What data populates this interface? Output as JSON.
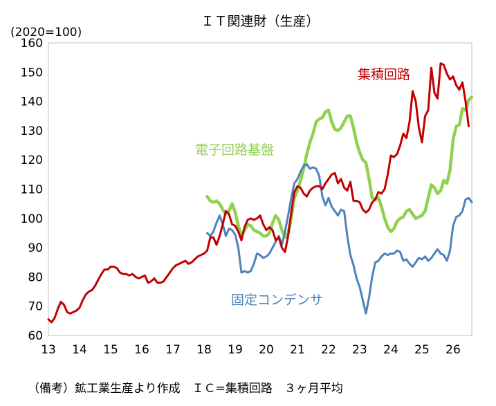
{
  "caption": "（備考）鉱工業生産より作成　ＩＣ=集積回路　３ヶ月平均",
  "chart_data": {
    "type": "line",
    "title": "ＩＴ関連財（生産）",
    "ylabel": "(2020=100)",
    "xlabel": "",
    "ylim": [
      60,
      160
    ],
    "xlim": [
      13,
      26.6
    ],
    "yticks": [
      60,
      70,
      80,
      90,
      100,
      110,
      120,
      130,
      140,
      150,
      160
    ],
    "xticks": [
      13,
      14,
      15,
      16,
      17,
      18,
      19,
      20,
      21,
      22,
      23,
      24,
      25,
      26
    ],
    "grid": false,
    "series": [
      {
        "name": "集積回路",
        "color": "#c00000",
        "points": [
          [
            13.0,
            65.5
          ],
          [
            13.1,
            64.5
          ],
          [
            13.2,
            66
          ],
          [
            13.3,
            69
          ],
          [
            13.4,
            71.5
          ],
          [
            13.5,
            70.5
          ],
          [
            13.6,
            68
          ],
          [
            13.7,
            67.5
          ],
          [
            13.8,
            68
          ],
          [
            13.9,
            68.5
          ],
          [
            14.0,
            69.5
          ],
          [
            14.1,
            72
          ],
          [
            14.2,
            74
          ],
          [
            14.3,
            75
          ],
          [
            14.4,
            75.5
          ],
          [
            14.5,
            77
          ],
          [
            14.6,
            79
          ],
          [
            14.7,
            81
          ],
          [
            14.8,
            82.5
          ],
          [
            14.9,
            82.5
          ],
          [
            15.0,
            83.5
          ],
          [
            15.1,
            83.5
          ],
          [
            15.2,
            83
          ],
          [
            15.3,
            81.5
          ],
          [
            15.4,
            81
          ],
          [
            15.5,
            81
          ],
          [
            15.6,
            80.5
          ],
          [
            15.7,
            81
          ],
          [
            15.8,
            80
          ],
          [
            15.9,
            79.5
          ],
          [
            16.0,
            80
          ],
          [
            16.1,
            80.5
          ],
          [
            16.2,
            78
          ],
          [
            16.3,
            78.5
          ],
          [
            16.4,
            79.5
          ],
          [
            16.5,
            78
          ],
          [
            16.6,
            78
          ],
          [
            16.7,
            78.5
          ],
          [
            16.8,
            80
          ],
          [
            16.9,
            81.5
          ],
          [
            17.0,
            83
          ],
          [
            17.1,
            84
          ],
          [
            17.2,
            84.5
          ],
          [
            17.3,
            85
          ],
          [
            17.4,
            85.5
          ],
          [
            17.5,
            84.5
          ],
          [
            17.6,
            85
          ],
          [
            17.7,
            86
          ],
          [
            17.8,
            87
          ],
          [
            17.9,
            87.5
          ],
          [
            18.0,
            88
          ],
          [
            18.1,
            89
          ],
          [
            18.2,
            93.5
          ],
          [
            18.3,
            93.5
          ],
          [
            18.4,
            91
          ],
          [
            18.5,
            94
          ],
          [
            18.6,
            98
          ],
          [
            18.7,
            102.5
          ],
          [
            18.8,
            101.5
          ],
          [
            18.9,
            98
          ],
          [
            19.0,
            97.5
          ],
          [
            19.1,
            95.5
          ],
          [
            19.2,
            92.5
          ],
          [
            19.3,
            97
          ],
          [
            19.4,
            99.5
          ],
          [
            19.5,
            100
          ],
          [
            19.6,
            99.5
          ],
          [
            19.7,
            100
          ],
          [
            19.8,
            101
          ],
          [
            19.9,
            98
          ],
          [
            20.0,
            96
          ],
          [
            20.1,
            97
          ],
          [
            20.2,
            96
          ],
          [
            20.3,
            92.5
          ],
          [
            20.4,
            93.5
          ],
          [
            20.5,
            90
          ],
          [
            20.6,
            88.5
          ],
          [
            20.7,
            94
          ],
          [
            20.8,
            102
          ],
          [
            20.9,
            109
          ],
          [
            21.0,
            111
          ],
          [
            21.1,
            110.5
          ],
          [
            21.2,
            108.5
          ],
          [
            21.3,
            107.5
          ],
          [
            21.4,
            109.5
          ],
          [
            21.5,
            110.5
          ],
          [
            21.6,
            111
          ],
          [
            21.7,
            111
          ],
          [
            21.8,
            110
          ],
          [
            21.9,
            112
          ],
          [
            22.0,
            113.5
          ],
          [
            22.1,
            115
          ],
          [
            22.2,
            115.5
          ],
          [
            22.3,
            112
          ],
          [
            22.4,
            113.5
          ],
          [
            22.5,
            110.5
          ],
          [
            22.6,
            109.5
          ],
          [
            22.7,
            112.5
          ],
          [
            22.8,
            106
          ],
          [
            22.9,
            106
          ],
          [
            23.0,
            105.5
          ],
          [
            23.1,
            103
          ],
          [
            23.2,
            102
          ],
          [
            23.3,
            103
          ],
          [
            23.4,
            105.5
          ],
          [
            23.5,
            106.5
          ],
          [
            23.6,
            109
          ],
          [
            23.7,
            108.5
          ],
          [
            23.8,
            110
          ],
          [
            23.9,
            115
          ],
          [
            24.0,
            121.5
          ],
          [
            24.1,
            121
          ],
          [
            24.2,
            122
          ],
          [
            24.3,
            125
          ],
          [
            24.4,
            129
          ],
          [
            24.5,
            127.5
          ],
          [
            24.6,
            133
          ],
          [
            24.7,
            143.5
          ],
          [
            24.8,
            140
          ],
          [
            24.9,
            131
          ],
          [
            25.0,
            126
          ],
          [
            25.1,
            135
          ],
          [
            25.2,
            137
          ],
          [
            25.3,
            151.5
          ],
          [
            25.4,
            143
          ],
          [
            25.5,
            141
          ],
          [
            25.6,
            153
          ],
          [
            25.7,
            152.5
          ],
          [
            25.8,
            149.5
          ],
          [
            25.9,
            147.5
          ],
          [
            26.0,
            148.5
          ],
          [
            26.1,
            145.5
          ],
          [
            26.2,
            144
          ],
          [
            26.3,
            146.5
          ],
          [
            26.4,
            140
          ],
          [
            26.5,
            131.5
          ]
        ]
      },
      {
        "name": "電子回路基盤",
        "color": "#92d050",
        "points": [
          [
            18.1,
            107.5
          ],
          [
            18.2,
            106
          ],
          [
            18.3,
            105.5
          ],
          [
            18.4,
            106
          ],
          [
            18.5,
            105
          ],
          [
            18.6,
            103
          ],
          [
            18.7,
            101.5
          ],
          [
            18.8,
            102.5
          ],
          [
            18.9,
            105
          ],
          [
            19.0,
            102
          ],
          [
            19.1,
            97.5
          ],
          [
            19.2,
            94
          ],
          [
            19.3,
            96
          ],
          [
            19.4,
            98
          ],
          [
            19.5,
            97.5
          ],
          [
            19.6,
            96
          ],
          [
            19.7,
            95.5
          ],
          [
            19.8,
            95
          ],
          [
            19.9,
            94
          ],
          [
            20.0,
            94
          ],
          [
            20.1,
            95
          ],
          [
            20.2,
            98.5
          ],
          [
            20.3,
            101
          ],
          [
            20.4,
            99.5
          ],
          [
            20.5,
            96
          ],
          [
            20.6,
            93.5
          ],
          [
            20.7,
            95
          ],
          [
            20.8,
            100
          ],
          [
            20.9,
            107
          ],
          [
            21.0,
            109.5
          ],
          [
            21.1,
            113
          ],
          [
            21.2,
            117
          ],
          [
            21.3,
            122
          ],
          [
            21.4,
            126
          ],
          [
            21.5,
            129
          ],
          [
            21.6,
            133
          ],
          [
            21.7,
            134
          ],
          [
            21.8,
            134.5
          ],
          [
            21.9,
            136.5
          ],
          [
            22.0,
            137
          ],
          [
            22.1,
            133
          ],
          [
            22.2,
            130.5
          ],
          [
            22.3,
            130
          ],
          [
            22.4,
            131
          ],
          [
            22.5,
            133
          ],
          [
            22.6,
            135
          ],
          [
            22.7,
            135
          ],
          [
            22.8,
            131
          ],
          [
            22.9,
            126
          ],
          [
            23.0,
            122.5
          ],
          [
            23.1,
            120
          ],
          [
            23.2,
            119
          ],
          [
            23.3,
            113.5
          ],
          [
            23.4,
            107
          ],
          [
            23.5,
            106.5
          ],
          [
            23.6,
            107
          ],
          [
            23.7,
            104
          ],
          [
            23.8,
            100
          ],
          [
            23.9,
            97
          ],
          [
            24.0,
            95.5
          ],
          [
            24.1,
            96.5
          ],
          [
            24.2,
            99
          ],
          [
            24.3,
            100
          ],
          [
            24.4,
            100.5
          ],
          [
            24.5,
            102.5
          ],
          [
            24.6,
            103
          ],
          [
            24.7,
            101.5
          ],
          [
            24.8,
            100
          ],
          [
            24.9,
            100.5
          ],
          [
            25.0,
            101
          ],
          [
            25.1,
            102.5
          ],
          [
            25.2,
            107
          ],
          [
            25.3,
            111.5
          ],
          [
            25.4,
            110.5
          ],
          [
            25.5,
            108.5
          ],
          [
            25.6,
            109.5
          ],
          [
            25.7,
            113
          ],
          [
            25.8,
            112
          ],
          [
            25.9,
            116.5
          ],
          [
            26.0,
            127
          ],
          [
            26.1,
            131.5
          ],
          [
            26.2,
            132
          ],
          [
            26.3,
            137.5
          ],
          [
            26.4,
            137
          ],
          [
            26.5,
            140.5
          ],
          [
            26.6,
            141.5
          ]
        ]
      },
      {
        "name": "固定コンデンサ",
        "color": "#4f81bd",
        "points": [
          [
            18.1,
            95
          ],
          [
            18.2,
            94
          ],
          [
            18.3,
            95.5
          ],
          [
            18.4,
            98.5
          ],
          [
            18.5,
            101
          ],
          [
            18.6,
            98
          ],
          [
            18.7,
            94
          ],
          [
            18.8,
            96.5
          ],
          [
            18.9,
            96
          ],
          [
            19.0,
            94.5
          ],
          [
            19.1,
            90
          ],
          [
            19.2,
            81.5
          ],
          [
            19.3,
            82
          ],
          [
            19.4,
            81.5
          ],
          [
            19.5,
            82
          ],
          [
            19.6,
            84.5
          ],
          [
            19.7,
            88
          ],
          [
            19.8,
            87.5
          ],
          [
            19.9,
            86.5
          ],
          [
            20.0,
            87
          ],
          [
            20.1,
            88
          ],
          [
            20.2,
            90
          ],
          [
            20.3,
            92
          ],
          [
            20.4,
            94
          ],
          [
            20.5,
            91
          ],
          [
            20.6,
            95.5
          ],
          [
            20.7,
            101
          ],
          [
            20.8,
            107
          ],
          [
            20.9,
            112
          ],
          [
            21.0,
            113.5
          ],
          [
            21.1,
            116
          ],
          [
            21.2,
            118
          ],
          [
            21.3,
            118.5
          ],
          [
            21.4,
            117
          ],
          [
            21.5,
            117.5
          ],
          [
            21.6,
            117
          ],
          [
            21.7,
            114.5
          ],
          [
            21.8,
            107.5
          ],
          [
            21.9,
            104.5
          ],
          [
            22.0,
            107
          ],
          [
            22.1,
            104
          ],
          [
            22.2,
            102.5
          ],
          [
            22.3,
            101
          ],
          [
            22.4,
            103
          ],
          [
            22.5,
            102.5
          ],
          [
            22.6,
            94
          ],
          [
            22.7,
            87.5
          ],
          [
            22.8,
            84
          ],
          [
            22.9,
            79.5
          ],
          [
            23.0,
            76.5
          ],
          [
            23.1,
            72
          ],
          [
            23.2,
            67.5
          ],
          [
            23.3,
            73
          ],
          [
            23.4,
            80
          ],
          [
            23.5,
            85
          ],
          [
            23.6,
            85.5
          ],
          [
            23.7,
            87
          ],
          [
            23.8,
            88
          ],
          [
            23.9,
            87.5
          ],
          [
            24.0,
            88
          ],
          [
            24.1,
            88
          ],
          [
            24.2,
            89
          ],
          [
            24.3,
            88.5
          ],
          [
            24.4,
            85.5
          ],
          [
            24.5,
            86
          ],
          [
            24.6,
            84.5
          ],
          [
            24.7,
            83.5
          ],
          [
            24.8,
            85
          ],
          [
            24.9,
            86.5
          ],
          [
            25.0,
            86
          ],
          [
            25.1,
            87
          ],
          [
            25.2,
            85.5
          ],
          [
            25.3,
            86.5
          ],
          [
            25.4,
            88
          ],
          [
            25.5,
            89.5
          ],
          [
            25.6,
            88
          ],
          [
            25.7,
            87.5
          ],
          [
            25.8,
            85.5
          ],
          [
            25.9,
            89
          ],
          [
            26.0,
            97.5
          ],
          [
            26.1,
            100.5
          ],
          [
            26.2,
            101
          ],
          [
            26.3,
            102.5
          ],
          [
            26.4,
            106.5
          ],
          [
            26.5,
            107
          ],
          [
            26.6,
            105.5
          ]
        ]
      }
    ]
  }
}
